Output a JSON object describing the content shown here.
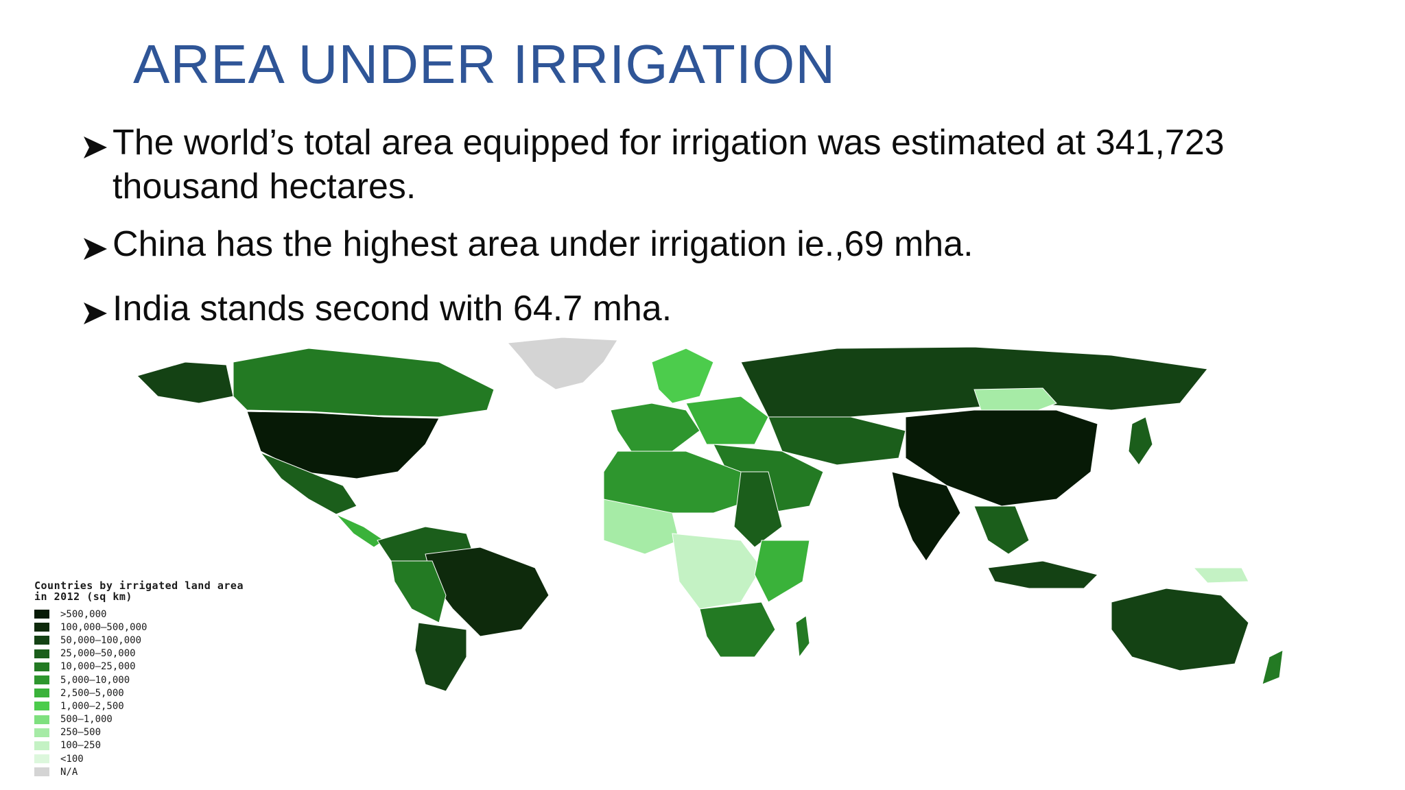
{
  "slide": {
    "title": "AREA UNDER IRRIGATION",
    "bullets": [
      "The world’s total area equipped for irrigation was estimated at 341,723 thousand hectares.",
      "China has the highest area under irrigation ie.,69 mha.",
      "India stands second with 64.7 mha."
    ],
    "bullet_icon": "arrowhead-bullet-icon"
  },
  "map": {
    "legend": {
      "title": "Countries by irrigated land area in 2012 (sq km)",
      "items": [
        {
          "label": ">500,000",
          "color": "#071a06"
        },
        {
          "label": "100,000–500,000",
          "color": "#0e2a0c"
        },
        {
          "label": "50,000–100,000",
          "color": "#144214"
        },
        {
          "label": "25,000–50,000",
          "color": "#1b5e1b"
        },
        {
          "label": "10,000–25,000",
          "color": "#237a23"
        },
        {
          "label": "5,000–10,000",
          "color": "#2e962e"
        },
        {
          "label": "2,500–5,000",
          "color": "#3ab23a"
        },
        {
          "label": "1,000–2,500",
          "color": "#4ccc4c"
        },
        {
          "label": "500–1,000",
          "color": "#7fe07f"
        },
        {
          "label": "250–500",
          "color": "#a6eba6"
        },
        {
          "label": "100–250",
          "color": "#c4f2c4"
        },
        {
          "label": "<100",
          "color": "#dcf7dc"
        },
        {
          "label": "N/A",
          "color": "#d4d4d4"
        }
      ]
    }
  }
}
